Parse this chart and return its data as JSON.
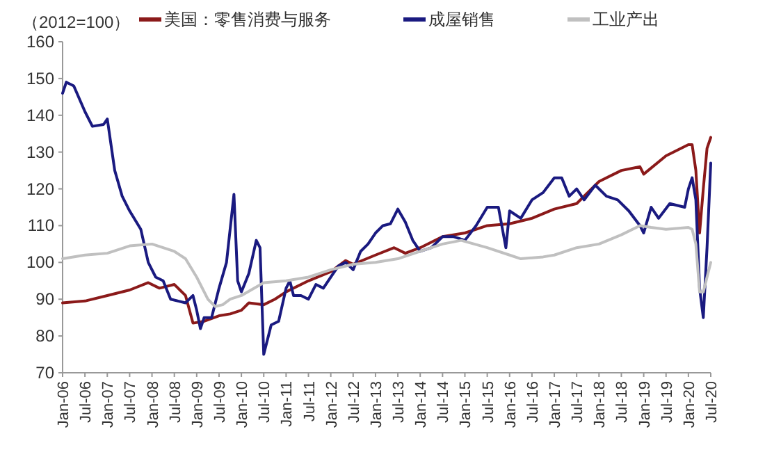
{
  "chart_data": {
    "type": "line",
    "ylabel": "（2012=100）",
    "legend": "top",
    "marker": "none",
    "line_style": "solid",
    "xlim": [
      "2006-01",
      "2020-07"
    ],
    "ylim": [
      70,
      160
    ],
    "yticks": [
      70,
      80,
      90,
      100,
      110,
      120,
      130,
      140,
      150,
      160
    ],
    "xticks": [
      {
        "value": "2006-01",
        "label": "Jan-06"
      },
      {
        "value": "2006-07",
        "label": "Jul-06"
      },
      {
        "value": "2007-01",
        "label": "Jan-07"
      },
      {
        "value": "2007-07",
        "label": "Jul-07"
      },
      {
        "value": "2008-01",
        "label": "Jan-08"
      },
      {
        "value": "2008-07",
        "label": "Jul-08"
      },
      {
        "value": "2009-01",
        "label": "Jan-09"
      },
      {
        "value": "2009-07",
        "label": "Jul-09"
      },
      {
        "value": "2010-01",
        "label": "Jan-10"
      },
      {
        "value": "2010-07",
        "label": "Jul-10"
      },
      {
        "value": "2011-01",
        "label": "Jan-11"
      },
      {
        "value": "2011-07",
        "label": "Jul-11"
      },
      {
        "value": "2012-01",
        "label": "Jan-12"
      },
      {
        "value": "2012-07",
        "label": "Jul-12"
      },
      {
        "value": "2013-01",
        "label": "Jan-13"
      },
      {
        "value": "2013-07",
        "label": "Jul-13"
      },
      {
        "value": "2014-01",
        "label": "Jan-14"
      },
      {
        "value": "2014-07",
        "label": "Jul-14"
      },
      {
        "value": "2015-01",
        "label": "Jan-15"
      },
      {
        "value": "2015-07",
        "label": "Jul-15"
      },
      {
        "value": "2016-01",
        "label": "Jan-16"
      },
      {
        "value": "2016-07",
        "label": "Jul-16"
      },
      {
        "value": "2017-01",
        "label": "Jan-17"
      },
      {
        "value": "2017-07",
        "label": "Jul-17"
      },
      {
        "value": "2018-01",
        "label": "Jan-18"
      },
      {
        "value": "2018-07",
        "label": "Jul-18"
      },
      {
        "value": "2019-01",
        "label": "Jan-19"
      },
      {
        "value": "2019-07",
        "label": "Jul-19"
      },
      {
        "value": "2020-01",
        "label": "Jan-20"
      },
      {
        "value": "2020-07",
        "label": "Jul-20"
      }
    ],
    "series": [
      {
        "name": "美国：零售消费与服务",
        "color": "#8b1a1a",
        "x": [
          "2006-01",
          "2006-07",
          "2007-01",
          "2007-07",
          "2007-12",
          "2008-03",
          "2008-07",
          "2008-10",
          "2008-12",
          "2009-03",
          "2009-07",
          "2009-10",
          "2010-01",
          "2010-03",
          "2010-07",
          "2010-10",
          "2011-01",
          "2011-07",
          "2012-01",
          "2012-05",
          "2012-07",
          "2013-01",
          "2013-06",
          "2013-09",
          "2014-01",
          "2014-07",
          "2015-01",
          "2015-07",
          "2016-01",
          "2016-07",
          "2017-01",
          "2017-07",
          "2018-01",
          "2018-07",
          "2018-12",
          "2019-01",
          "2019-07",
          "2020-01",
          "2020-02",
          "2020-03",
          "2020-04",
          "2020-05",
          "2020-06",
          "2020-07"
        ],
        "values": [
          89,
          89.5,
          91,
          92.5,
          94.5,
          93,
          94,
          91,
          83.5,
          84,
          85.5,
          86,
          87,
          89,
          88.5,
          90,
          92,
          95,
          97.5,
          100.5,
          99.5,
          102,
          104,
          102.5,
          104,
          107,
          108,
          110,
          110.5,
          112,
          114.5,
          116,
          122,
          125,
          126,
          124,
          129,
          132,
          132,
          125,
          108,
          120,
          131,
          134
        ]
      },
      {
        "name": "成屋销售",
        "color": "#1a1a80",
        "x": [
          "2006-01",
          "2006-02",
          "2006-04",
          "2006-07",
          "2006-09",
          "2006-12",
          "2007-01",
          "2007-03",
          "2007-05",
          "2007-07",
          "2007-10",
          "2007-12",
          "2008-02",
          "2008-04",
          "2008-06",
          "2008-08",
          "2008-10",
          "2008-12",
          "2009-01",
          "2009-02",
          "2009-03",
          "2009-05",
          "2009-07",
          "2009-09",
          "2009-11",
          "2009-12",
          "2010-01",
          "2010-03",
          "2010-05",
          "2010-06",
          "2010-07",
          "2010-09",
          "2010-11",
          "2011-01",
          "2011-02",
          "2011-03",
          "2011-05",
          "2011-07",
          "2011-09",
          "2011-11",
          "2012-01",
          "2012-03",
          "2012-05",
          "2012-07",
          "2012-09",
          "2012-11",
          "2013-01",
          "2013-03",
          "2013-05",
          "2013-07",
          "2013-09",
          "2013-11",
          "2014-01",
          "2014-04",
          "2014-07",
          "2014-10",
          "2015-01",
          "2015-04",
          "2015-07",
          "2015-10",
          "2015-12",
          "2016-01",
          "2016-04",
          "2016-07",
          "2016-10",
          "2017-01",
          "2017-03",
          "2017-05",
          "2017-07",
          "2017-09",
          "2017-12",
          "2018-03",
          "2018-06",
          "2018-09",
          "2018-12",
          "2019-01",
          "2019-03",
          "2019-05",
          "2019-08",
          "2019-12",
          "2020-01",
          "2020-02",
          "2020-03",
          "2020-04",
          "2020-05",
          "2020-06",
          "2020-07"
        ],
        "values": [
          146,
          149,
          148,
          141,
          137,
          137.5,
          139,
          125,
          118,
          114,
          109,
          100,
          96,
          95,
          90,
          89.5,
          89,
          91,
          87,
          82,
          85,
          85,
          93,
          100,
          118.5,
          95,
          92,
          97,
          106,
          104,
          75,
          83,
          84,
          93,
          95,
          91,
          91,
          90,
          94,
          93,
          96,
          99,
          100,
          98,
          103,
          105,
          108,
          110,
          110.5,
          114.5,
          111,
          106,
          103,
          104,
          107,
          107,
          106,
          110,
          115,
          115,
          104,
          114,
          112,
          117,
          119,
          123,
          123,
          118,
          120,
          117,
          121,
          118,
          117,
          114,
          110,
          108,
          115,
          112,
          116,
          115,
          120,
          123,
          117,
          93,
          85,
          104,
          127
        ]
      },
      {
        "name": "工业产出",
        "color": "#c0c0c0",
        "x": [
          "2006-01",
          "2006-07",
          "2007-01",
          "2007-07",
          "2008-01",
          "2008-07",
          "2008-10",
          "2009-01",
          "2009-04",
          "2009-06",
          "2009-08",
          "2009-10",
          "2010-01",
          "2010-07",
          "2011-01",
          "2011-07",
          "2012-01",
          "2012-07",
          "2013-01",
          "2013-07",
          "2014-01",
          "2014-07",
          "2014-12",
          "2015-07",
          "2016-01",
          "2016-04",
          "2016-10",
          "2017-01",
          "2017-07",
          "2018-01",
          "2018-07",
          "2018-12",
          "2019-03",
          "2019-07",
          "2020-01",
          "2020-02",
          "2020-03",
          "2020-04",
          "2020-05",
          "2020-06",
          "2020-07"
        ],
        "values": [
          101,
          102,
          102.5,
          104.5,
          105,
          103,
          101,
          96,
          90,
          88,
          88.5,
          90,
          91,
          94.5,
          95,
          96,
          98,
          99.5,
          100,
          101,
          103,
          105,
          106,
          104,
          102,
          101,
          101.5,
          102,
          104,
          105,
          107.5,
          110,
          109.5,
          109,
          109.5,
          109,
          105,
          92,
          92,
          96,
          100
        ]
      }
    ]
  }
}
